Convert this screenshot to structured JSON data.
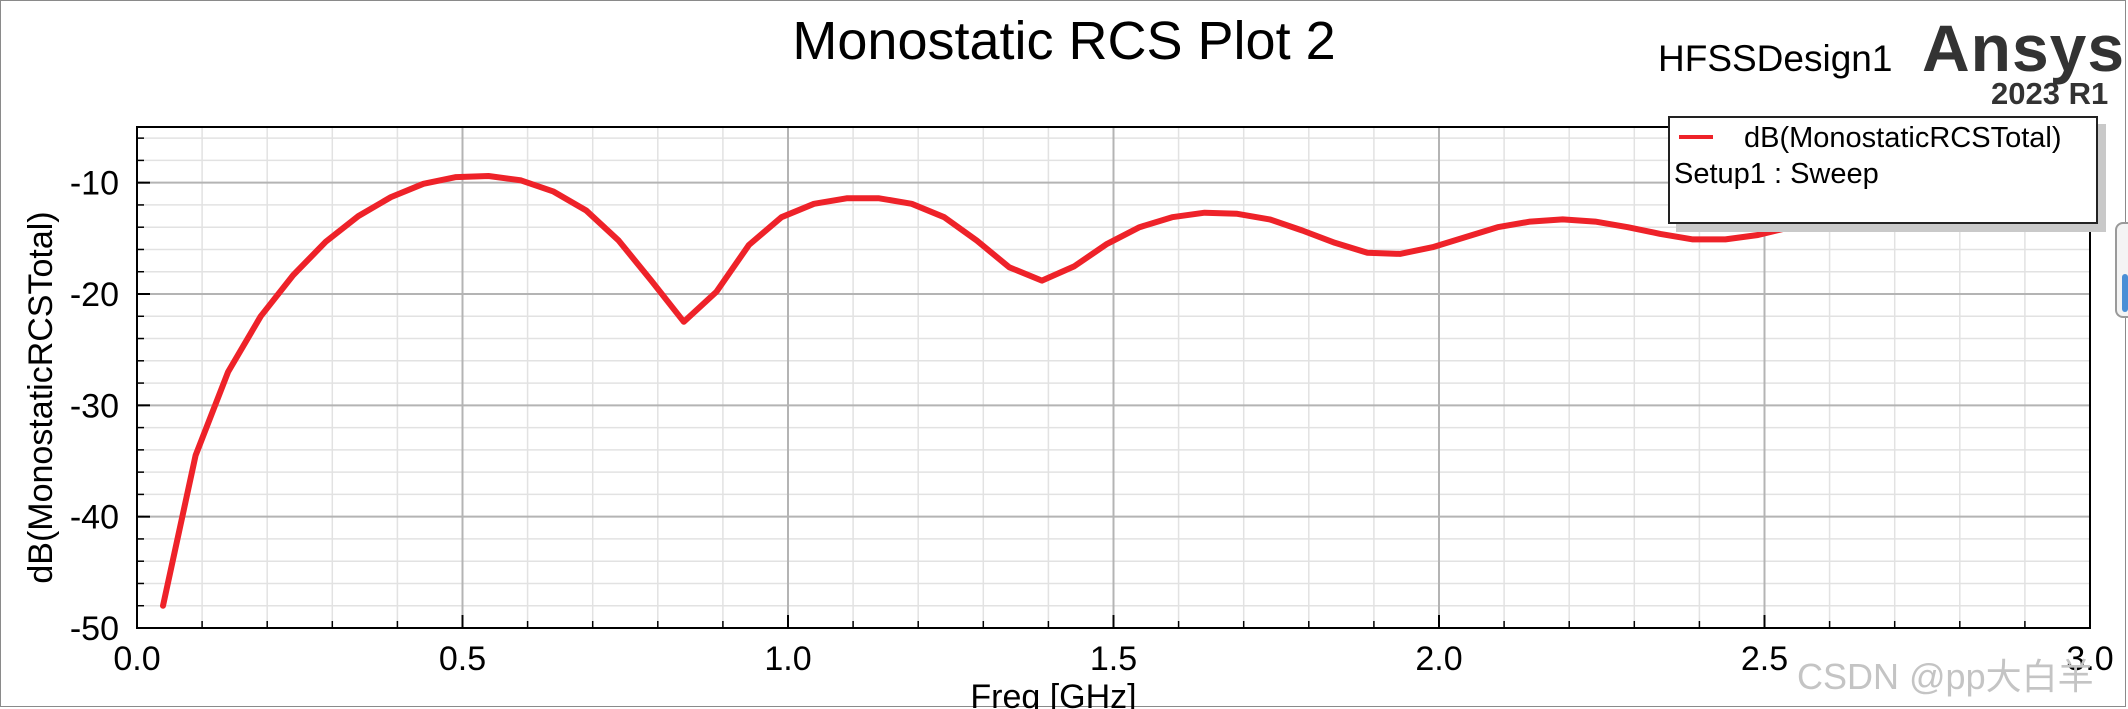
{
  "header": {
    "design_name": "HFSSDesign1",
    "brand": "Ansys",
    "version": "2023 R1"
  },
  "legend": {
    "series_label": "dB(MonostaticRCSTotal)",
    "sweep_label": "Setup1 : Sweep"
  },
  "watermark": "CSDN @pp大白羊",
  "colors": {
    "series": "#ee2229",
    "major_grid": "#b4b4b4",
    "minor_grid": "#e2e2e2",
    "axis": "#000000"
  },
  "chart_data": {
    "type": "line",
    "title": "Monostatic RCS Plot 2",
    "xlabel": "Freq [GHz]",
    "ylabel": "dB(MonostaticRCSTotal)",
    "xlim": [
      0,
      3.0
    ],
    "ylim": [
      -50,
      -5
    ],
    "xticks": [
      0.0,
      0.5,
      1.0,
      1.5,
      2.0,
      2.5,
      3.0
    ],
    "xtick_labels": [
      "0.0",
      "0.5",
      "1.0",
      "1.5",
      "2.0",
      "2.5",
      "3.0"
    ],
    "yticks": [
      -10,
      -20,
      -30,
      -40,
      -50
    ],
    "ytick_labels": [
      "-10",
      "-20",
      "-30",
      "-40",
      "-50"
    ],
    "grid": true,
    "legend_position": "top-right",
    "series": [
      {
        "name": "dB(MonostaticRCSTotal)",
        "color": "#ee2229",
        "x": [
          0.04,
          0.09,
          0.14,
          0.19,
          0.24,
          0.29,
          0.34,
          0.39,
          0.44,
          0.49,
          0.54,
          0.59,
          0.64,
          0.69,
          0.74,
          0.79,
          0.84,
          0.89,
          0.94,
          0.99,
          1.04,
          1.09,
          1.14,
          1.19,
          1.24,
          1.29,
          1.34,
          1.39,
          1.44,
          1.49,
          1.54,
          1.59,
          1.64,
          1.69,
          1.74,
          1.79,
          1.84,
          1.89,
          1.94,
          1.99,
          2.04,
          2.09,
          2.14,
          2.19,
          2.24,
          2.29,
          2.34,
          2.39,
          2.44,
          2.49,
          2.54
        ],
        "y": [
          -48.0,
          -34.5,
          -27.0,
          -22.0,
          -18.3,
          -15.3,
          -13.0,
          -11.3,
          -10.1,
          -9.5,
          -9.4,
          -9.8,
          -10.8,
          -12.5,
          -15.2,
          -18.8,
          -22.5,
          -19.8,
          -15.6,
          -13.1,
          -11.9,
          -11.4,
          -11.4,
          -11.9,
          -13.1,
          -15.2,
          -17.6,
          -18.8,
          -17.5,
          -15.5,
          -14.0,
          -13.1,
          -12.7,
          -12.8,
          -13.3,
          -14.3,
          -15.4,
          -16.3,
          -16.4,
          -15.8,
          -14.9,
          -14.0,
          -13.5,
          -13.3,
          -13.5,
          -14.0,
          -14.6,
          -15.1,
          -15.1,
          -14.7,
          -14.0
        ]
      }
    ]
  }
}
